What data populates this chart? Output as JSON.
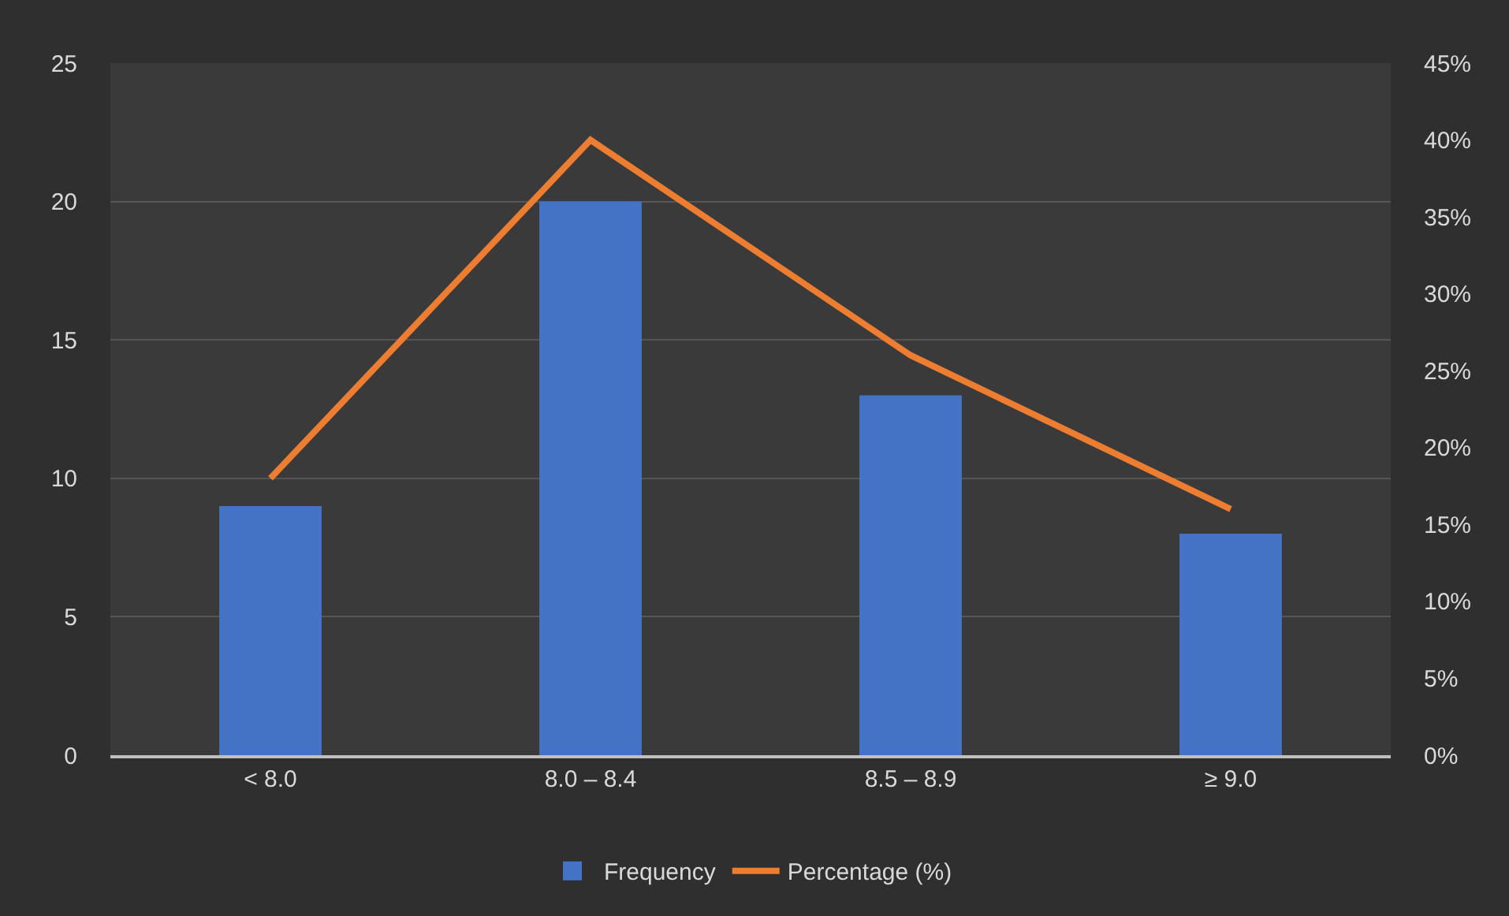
{
  "chart_data": {
    "type": "bar",
    "categories": [
      "< 8.0",
      "8.0 – 8.4",
      "8.5 – 8.9",
      "≥ 9.0"
    ],
    "series": [
      {
        "name": "Frequency",
        "color": "#4472c4",
        "values": [
          9,
          20,
          13,
          8
        ]
      },
      {
        "name": "Percentage (%)",
        "type": "line",
        "axis": "y2",
        "color": "#ed7d31",
        "values": [
          18,
          40,
          26,
          16
        ]
      }
    ],
    "ylim": [
      0,
      25
    ],
    "yticks": [
      0,
      5,
      10,
      15,
      20,
      25
    ],
    "y2lim": [
      0,
      45
    ],
    "y2ticks": [
      {
        "value": 0,
        "label": "0%"
      },
      {
        "value": 5,
        "label": "5%"
      },
      {
        "value": 10,
        "label": "10%"
      },
      {
        "value": 15,
        "label": "15%"
      },
      {
        "value": 20,
        "label": "20%"
      },
      {
        "value": 25,
        "label": "25%"
      },
      {
        "value": 30,
        "label": "30%"
      },
      {
        "value": 35,
        "label": "35%"
      },
      {
        "value": 40,
        "label": "40%"
      },
      {
        "value": 45,
        "label": "45%"
      }
    ],
    "grid": "y",
    "legend": "bottom",
    "marker": "none",
    "line_style": "solid"
  }
}
